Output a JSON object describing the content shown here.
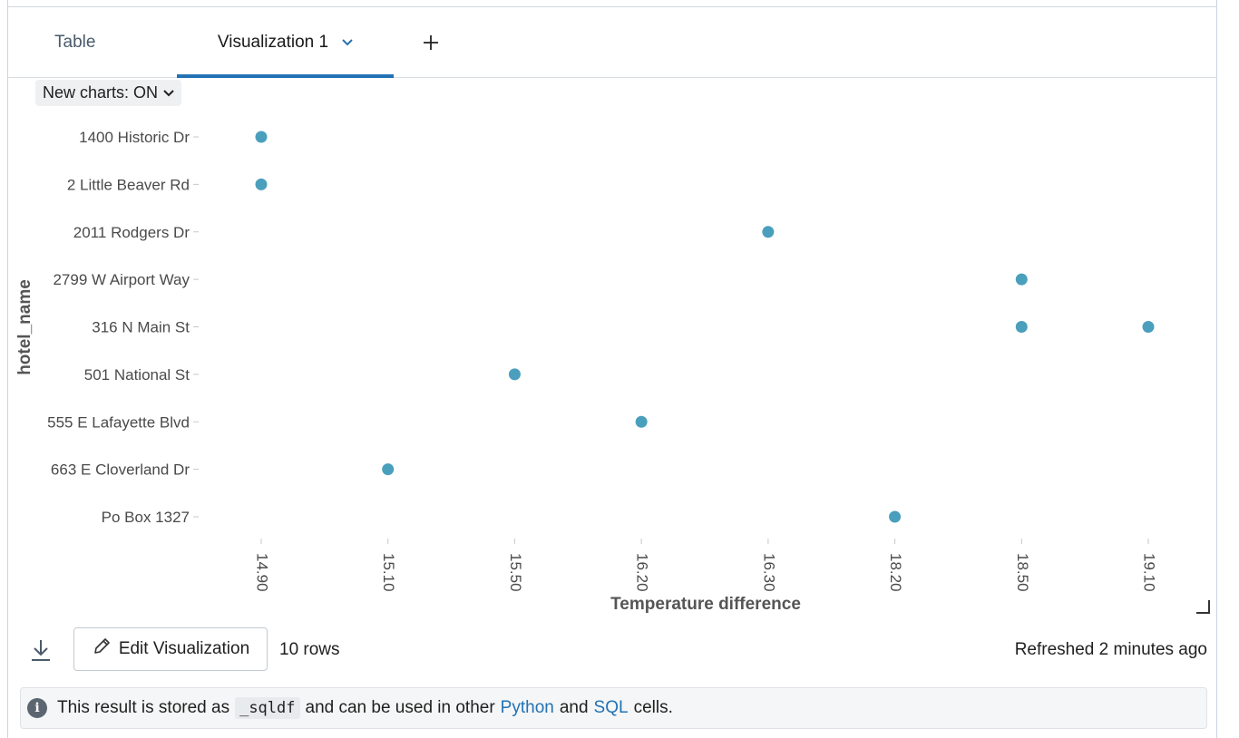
{
  "tabs": {
    "table_label": "Table",
    "viz_label": "Visualization 1",
    "viz_chevron_icon": "chevron-down-icon",
    "add_icon": "plus-icon"
  },
  "toggle": {
    "label": "New charts: ON",
    "icon": "chevron-down-icon"
  },
  "chart_data": {
    "type": "scatter",
    "title": "",
    "xlabel": "Temperature difference",
    "ylabel": "hotel_name",
    "x_categories": [
      "14.90",
      "15.10",
      "15.50",
      "16.20",
      "16.30",
      "18.20",
      "18.50",
      "19.10"
    ],
    "y_categories": [
      "1400 Historic Dr",
      "2 Little Beaver Rd",
      "2011 Rodgers Dr",
      "2799 W Airport Way",
      "316 N Main St",
      "501 National St",
      "555 E Lafayette Blvd",
      "663 E Cloverland Dr",
      "Po Box 1327"
    ],
    "points": [
      {
        "x": "14.90",
        "y": "1400 Historic Dr"
      },
      {
        "x": "14.90",
        "y": "2 Little Beaver Rd"
      },
      {
        "x": "16.30",
        "y": "2011 Rodgers Dr"
      },
      {
        "x": "18.50",
        "y": "2799 W Airport Way"
      },
      {
        "x": "18.50",
        "y": "316 N Main St"
      },
      {
        "x": "19.10",
        "y": "316 N Main St"
      },
      {
        "x": "15.50",
        "y": "501 National St"
      },
      {
        "x": "16.20",
        "y": "555 E Lafayette Blvd"
      },
      {
        "x": "15.10",
        "y": "663 E Cloverland Dr"
      },
      {
        "x": "18.20",
        "y": "Po Box 1327"
      }
    ],
    "point_color": "#4a9fbd",
    "grid": false,
    "legend": "none"
  },
  "footer": {
    "download_icon": "download-icon",
    "edit_label": "Edit Visualization",
    "edit_icon": "pencil-icon",
    "rows_label": "10 rows",
    "refreshed_label": "Refreshed 2 minutes ago"
  },
  "info_banner": {
    "icon": "info-icon",
    "text_before": "This result is stored as",
    "code": "_sqldf",
    "text_middle": "and can be used in other",
    "link_python": "Python",
    "text_and": "and",
    "link_sql": "SQL",
    "text_after": "cells."
  }
}
